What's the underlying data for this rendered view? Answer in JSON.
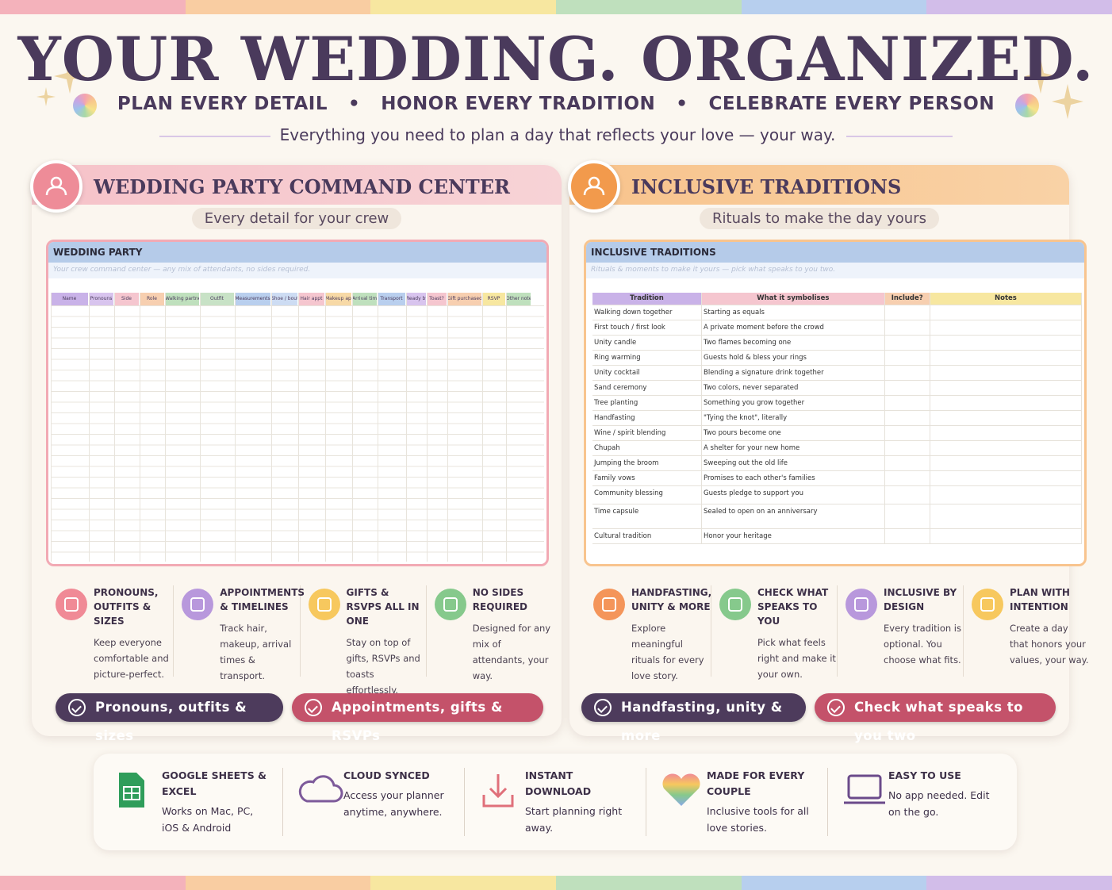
{
  "header": {
    "title": "YOUR WEDDING. ORGANIZED.",
    "taglines": [
      "PLAN EVERY DETAIL",
      "HONOR EVERY TRADITION",
      "CELEBRATE EVERY PERSON"
    ],
    "subtitle": "Everything you need to plan a day that reflects your love — your way."
  },
  "panels": [
    {
      "title": "WEDDING PARTY COMMAND CENTER",
      "subtitle": "Every detail for your crew",
      "sheet": {
        "title": "WEDDING PARTY",
        "note": "Your crew command center — any mix of attendants, no sides required.",
        "columns": [
          "Name",
          "Pronouns",
          "Side",
          "Role",
          "Walking partner",
          "Outfit",
          "Measurements",
          "Shoe / boutonn",
          "Hair appt",
          "Makeup appt",
          "Arrival time",
          "Transport",
          "Ready by",
          "Toast?",
          "Gift purchased",
          "RSVP",
          "Other notes"
        ]
      },
      "features": [
        {
          "title": "PRONOUNS, OUTFITS & SIZES",
          "text": "Keep everyone comfortable and picture-perfect."
        },
        {
          "title": "APPOINTMENTS & TIMELINES",
          "text": "Track hair, makeup, arrival times & transport."
        },
        {
          "title": "GIFTS & RSVPS ALL IN ONE",
          "text": "Stay on top of gifts, RSVPs and toasts effortlessly."
        },
        {
          "title": "NO SIDES REQUIRED",
          "text": "Designed for any mix of attendants, your way."
        }
      ],
      "buttons": [
        "Pronouns, outfits & sizes",
        "Appointments, gifts & RSVPs"
      ]
    },
    {
      "title": "INCLUSIVE TRADITIONS",
      "subtitle": "Rituals to make the day yours",
      "sheet": {
        "title": "INCLUSIVE TRADITIONS",
        "note": "Rituals & moments to make it yours — pick what speaks to you two.",
        "columns": [
          "Tradition",
          "What it symbolises",
          "Include?",
          "Notes"
        ],
        "rows": [
          [
            "Walking down together",
            "Starting as equals"
          ],
          [
            "First touch / first look",
            "A private moment before the crowd"
          ],
          [
            "Unity candle",
            "Two flames becoming one"
          ],
          [
            "Ring warming",
            "Guests hold & bless your rings"
          ],
          [
            "Unity cocktail",
            "Blending a signature drink together"
          ],
          [
            "Sand ceremony",
            "Two colors, never separated"
          ],
          [
            "Tree planting",
            "Something you grow together"
          ],
          [
            "Handfasting",
            "\"Tying the knot\", literally"
          ],
          [
            "Wine / spirit blending",
            "Two pours become one"
          ],
          [
            "Chupah",
            "A shelter for your new home"
          ],
          [
            "Jumping the broom",
            "Sweeping out the old life"
          ],
          [
            "Family vows",
            "Promises to each other's families"
          ],
          [
            "Community blessing",
            "Guests pledge to support you"
          ],
          [
            "Time capsule",
            "Sealed to open on an anniversary"
          ],
          [
            "Cultural tradition",
            "Honor your heritage"
          ]
        ]
      },
      "features": [
        {
          "title": "HANDFASTING, UNITY & MORE",
          "text": "Explore meaningful rituals for every love story."
        },
        {
          "title": "CHECK WHAT SPEAKS TO YOU",
          "text": "Pick what feels right and make it your own."
        },
        {
          "title": "INCLUSIVE BY DESIGN",
          "text": "Every tradition is optional. You choose what fits."
        },
        {
          "title": "PLAN WITH INTENTION",
          "text": "Create a day that honors your values, your way."
        }
      ],
      "buttons": [
        "Handfasting, unity & more",
        "Check what speaks to you two"
      ]
    }
  ],
  "footer": [
    {
      "title": "GOOGLE SHEETS & EXCEL",
      "text": "Works on Mac, PC, iOS & Android"
    },
    {
      "title": "CLOUD SYNCED",
      "text": "Access your planner anytime, anywhere."
    },
    {
      "title": "INSTANT DOWNLOAD",
      "text": "Start planning right away."
    },
    {
      "title": "MADE FOR EVERY COUPLE",
      "text": "Inclusive tools for all love stories."
    },
    {
      "title": "EASY TO USE",
      "text": "No app needed. Edit on the go."
    }
  ]
}
